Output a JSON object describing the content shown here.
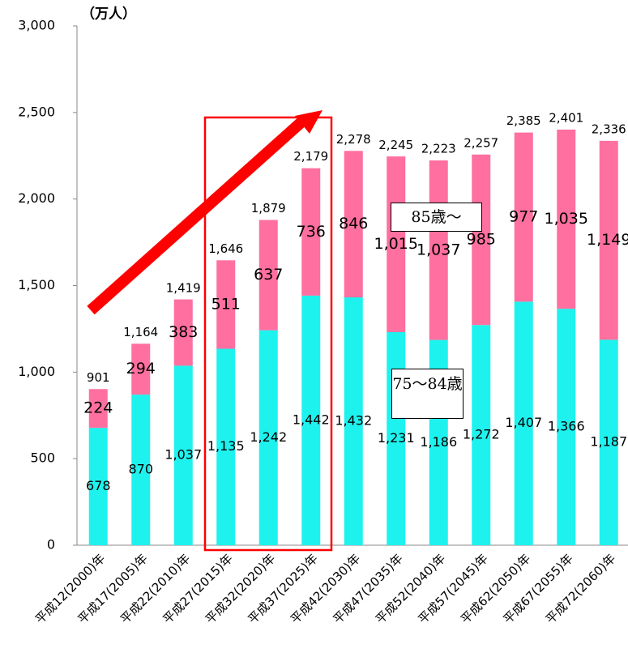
{
  "chart_data": {
    "type": "stacked-bar",
    "unit_label": "（万人）",
    "categories": [
      "平成12(2000)年",
      "平成17(2005)年",
      "平成22(2010)年",
      "平成27(2015)年",
      "平成32(2020)年",
      "平成37(2025)年",
      "平成42(2030)年",
      "平成47(2035)年",
      "平成52(2040)年",
      "平成57(2045)年",
      "平成62(2050)年",
      "平成67(2055)年",
      "平成72(2060)年"
    ],
    "series": [
      {
        "name": "75〜84歳",
        "color": "#1ef2ee",
        "values": [
          678,
          870,
          1037,
          1135,
          1242,
          1442,
          1432,
          1231,
          1186,
          1272,
          1407,
          1366,
          1187
        ],
        "value_labels": [
          "678",
          "870",
          "1,037",
          "1,135",
          "1,242",
          "1,442",
          "1,432",
          "1,231",
          "1,186",
          "1,272",
          "1,407",
          "1,366",
          "1,187"
        ]
      },
      {
        "name": "85歳〜",
        "color": "#ff6f9f",
        "values": [
          224,
          294,
          383,
          511,
          637,
          736,
          846,
          1015,
          1037,
          985,
          977,
          1035,
          1149
        ],
        "value_labels": [
          "224",
          "294",
          "383",
          "511",
          "637",
          "736",
          "846",
          "1,015",
          "1,037",
          "985",
          "977",
          "1,035",
          "1,149"
        ]
      }
    ],
    "totals": [
      901,
      1164,
      1419,
      1646,
      1879,
      2179,
      2278,
      2245,
      2223,
      2257,
      2385,
      2401,
      2336
    ],
    "total_labels": [
      "901",
      "1,164",
      "1,419",
      "1,646",
      "1,879",
      "2,179",
      "2,278",
      "2,245",
      "2,223",
      "2,257",
      "2,385",
      "2,401",
      "2,336"
    ],
    "ylim": [
      0,
      3000
    ],
    "yticks": [
      0,
      500,
      {
        "value": 1000,
        "label": "1,000"
      },
      {
        "value": 1500,
        "label": "1,500"
      },
      {
        "value": 2000,
        "label": "2,000"
      },
      {
        "value": 2500,
        "label": "2,500"
      },
      {
        "value": 3000,
        "label": "3,000"
      }
    ]
  }
}
